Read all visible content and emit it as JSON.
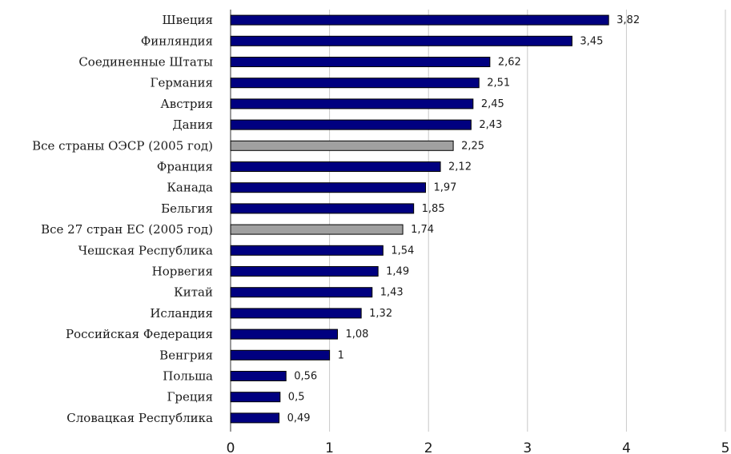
{
  "chart_data": {
    "type": "bar",
    "orientation": "horizontal",
    "title": "",
    "xlabel": "",
    "ylabel": "",
    "xlim": [
      0,
      5
    ],
    "x_ticks": [
      "0",
      "1",
      "2",
      "3",
      "4",
      "5"
    ],
    "grid": "vertical",
    "legend": "none",
    "bar_color": "#000080",
    "highlight_color": "#a0a0a0",
    "categories": [
      "Швеция",
      "Финляндия",
      "Соединенные Штаты",
      "Германия",
      "Австрия",
      "Дания",
      "Все страны ОЭСР (2005 год)",
      "Франция",
      "Канада",
      "Бельгия",
      "Все 27 стран ЕС (2005 год)",
      "Чешская Республика",
      "Норвегия",
      "Китай",
      "Исландия",
      "Российская Федерация",
      "Венгрия",
      "Польша",
      "Греция",
      "Словацкая Республика"
    ],
    "values": [
      3.82,
      3.45,
      2.62,
      2.51,
      2.45,
      2.43,
      2.25,
      2.12,
      1.97,
      1.85,
      1.74,
      1.54,
      1.49,
      1.43,
      1.32,
      1.08,
      1,
      0.56,
      0.5,
      0.49
    ],
    "value_labels": [
      "3,82",
      "3,45",
      "2,62",
      "2,51",
      "2,45",
      "2,43",
      "2,25",
      "2,12",
      "1,97",
      "1,85",
      "1,74",
      "1,54",
      "1,49",
      "1,43",
      "1,32",
      "1,08",
      "1",
      "0,56",
      "0,5",
      "0,49"
    ],
    "highlighted": [
      false,
      false,
      false,
      false,
      false,
      false,
      true,
      false,
      false,
      false,
      true,
      false,
      false,
      false,
      false,
      false,
      false,
      false,
      false,
      false
    ]
  }
}
